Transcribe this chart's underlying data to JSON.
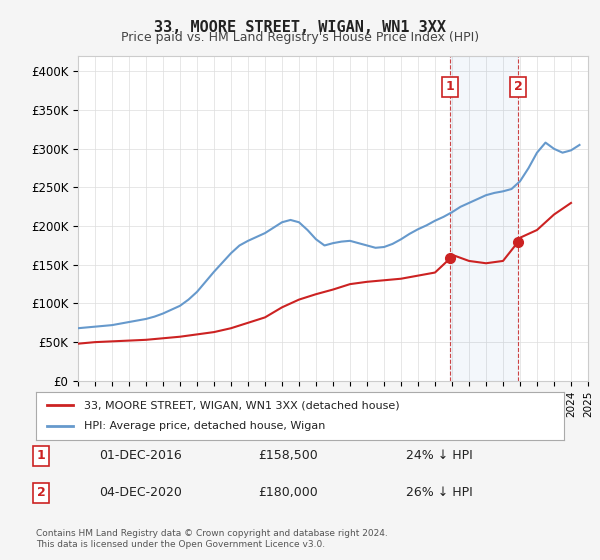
{
  "title": "33, MOORE STREET, WIGAN, WN1 3XX",
  "subtitle": "Price paid vs. HM Land Registry's House Price Index (HPI)",
  "footer": "Contains HM Land Registry data © Crown copyright and database right 2024.\nThis data is licensed under the Open Government Licence v3.0.",
  "legend_line1": "33, MOORE STREET, WIGAN, WN1 3XX (detached house)",
  "legend_line2": "HPI: Average price, detached house, Wigan",
  "annotation1_label": "1",
  "annotation1_date": "01-DEC-2016",
  "annotation1_price": "£158,500",
  "annotation1_hpi": "24% ↓ HPI",
  "annotation2_label": "2",
  "annotation2_date": "04-DEC-2020",
  "annotation2_price": "£180,000",
  "annotation2_hpi": "26% ↓ HPI",
  "hpi_color": "#6699cc",
  "price_color": "#cc2222",
  "annotation_color": "#cc2222",
  "vline_color": "#cc4444",
  "background_color": "#f5f5f5",
  "plot_bg_color": "#ffffff",
  "ylim": [
    0,
    420000
  ],
  "yticks": [
    0,
    50000,
    100000,
    150000,
    200000,
    250000,
    300000,
    350000,
    400000
  ],
  "ytick_labels": [
    "£0",
    "£50K",
    "£100K",
    "£150K",
    "£200K",
    "£250K",
    "£300K",
    "£350K",
    "£400K"
  ],
  "hpi_x": [
    1995,
    1995.5,
    1996,
    1996.5,
    1997,
    1997.5,
    1998,
    1998.5,
    1999,
    1999.5,
    2000,
    2000.5,
    2001,
    2001.5,
    2002,
    2002.5,
    2003,
    2003.5,
    2004,
    2004.5,
    2005,
    2005.5,
    2006,
    2006.5,
    2007,
    2007.5,
    2008,
    2008.5,
    2009,
    2009.5,
    2010,
    2010.5,
    2011,
    2011.5,
    2012,
    2012.5,
    2013,
    2013.5,
    2014,
    2014.5,
    2015,
    2015.5,
    2016,
    2016.5,
    2017,
    2017.5,
    2018,
    2018.5,
    2019,
    2019.5,
    2020,
    2020.5,
    2021,
    2021.5,
    2022,
    2022.5,
    2023,
    2023.5,
    2024,
    2024.5
  ],
  "hpi_y": [
    68000,
    69000,
    70000,
    71000,
    72000,
    74000,
    76000,
    78000,
    80000,
    83000,
    87000,
    92000,
    97000,
    105000,
    115000,
    128000,
    141000,
    153000,
    165000,
    175000,
    181000,
    186000,
    191000,
    198000,
    205000,
    208000,
    205000,
    195000,
    183000,
    175000,
    178000,
    180000,
    181000,
    178000,
    175000,
    172000,
    173000,
    177000,
    183000,
    190000,
    196000,
    201000,
    207000,
    212000,
    218000,
    225000,
    230000,
    235000,
    240000,
    243000,
    245000,
    248000,
    258000,
    275000,
    295000,
    308000,
    300000,
    295000,
    298000,
    305000
  ],
  "price_x": [
    1995,
    1996,
    1997,
    1998,
    1999,
    2000,
    2001,
    2002,
    2003,
    2004,
    2005,
    2006,
    2007,
    2008,
    2009,
    2010,
    2011,
    2012,
    2013,
    2014,
    2015,
    2016,
    2016.9,
    2017,
    2018,
    2019,
    2020,
    2020.9,
    2021,
    2022,
    2023,
    2024
  ],
  "price_y": [
    48000,
    50000,
    51000,
    52000,
    53000,
    55000,
    57000,
    60000,
    63000,
    68000,
    75000,
    82000,
    95000,
    105000,
    112000,
    118000,
    125000,
    128000,
    130000,
    132000,
    136000,
    140000,
    158500,
    163000,
    155000,
    152000,
    155000,
    180000,
    185000,
    195000,
    215000,
    230000
  ],
  "ann1_x": 2016.9,
  "ann1_y": 158500,
  "ann2_x": 2020.9,
  "ann2_y": 180000,
  "xmin": 1995,
  "xmax": 2025
}
